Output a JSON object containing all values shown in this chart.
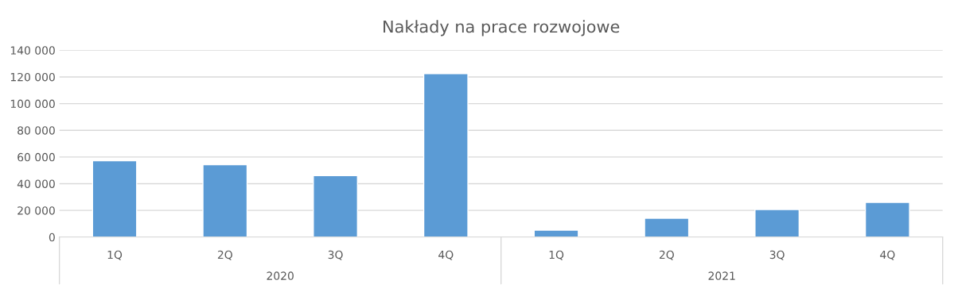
{
  "chart_data": {
    "type": "bar",
    "title": "Nakłady na prace rozwojowe",
    "categories": [
      "1Q",
      "2Q",
      "3Q",
      "4Q",
      "1Q",
      "2Q",
      "3Q",
      "4Q"
    ],
    "values": [
      57200,
      54300,
      46100,
      122400,
      5200,
      14100,
      20700,
      26000
    ],
    "color": "#5b9bd5",
    "ylim": [
      0,
      140000
    ],
    "yticks": [
      0,
      {
        "value": 20000,
        "label": "20 000"
      },
      {
        "value": 40000,
        "label": "40 000"
      },
      {
        "value": 60000,
        "label": "60 000"
      },
      {
        "value": 80000,
        "label": "80 000"
      },
      {
        "value": 100000,
        "label": "100 000"
      },
      {
        "value": 120000,
        "label": "120 000"
      },
      {
        "value": 140000,
        "label": "140 000"
      }
    ],
    "grid": "y",
    "annotations": [
      "2020",
      "2021"
    ]
  }
}
